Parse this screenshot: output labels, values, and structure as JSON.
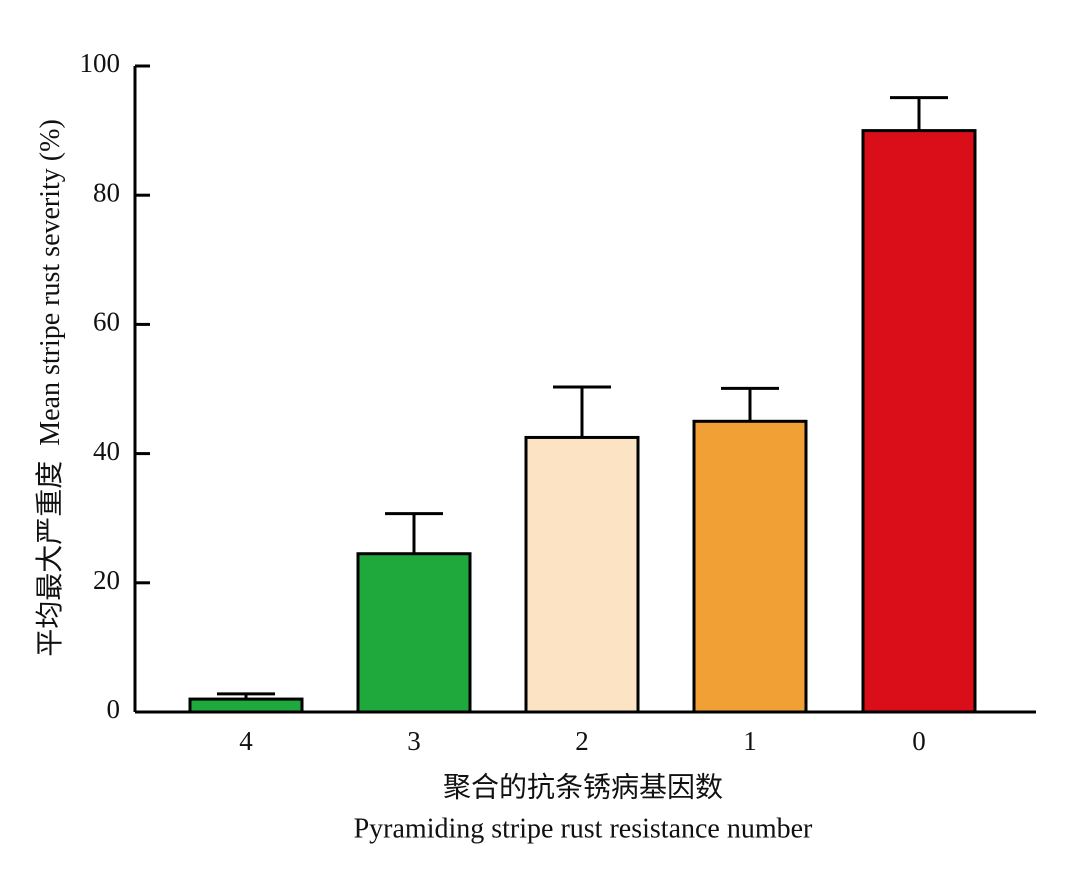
{
  "chart_data": {
    "type": "bar",
    "categories": [
      "4",
      "3",
      "2",
      "1",
      "0"
    ],
    "values": [
      2,
      24.5,
      42.5,
      45,
      90
    ],
    "error_upper": [
      2.8,
      30.7,
      50.3,
      50.1,
      95.1
    ],
    "colors": [
      "#1fa83c",
      "#1fa83c",
      "#fbe3c3",
      "#f0a035",
      "#d90e19"
    ],
    "ylim": [
      0,
      100
    ],
    "yticks": [
      0,
      20,
      40,
      60,
      80,
      100
    ],
    "ylabel_cn": "平均最大严重度",
    "ylabel_en": "Mean stripe rust severity (%)",
    "xlabel_cn": "聚合的抗条锈病基因数",
    "xlabel_en": "Pyramiding stripe rust resistance number",
    "grid": false
  }
}
